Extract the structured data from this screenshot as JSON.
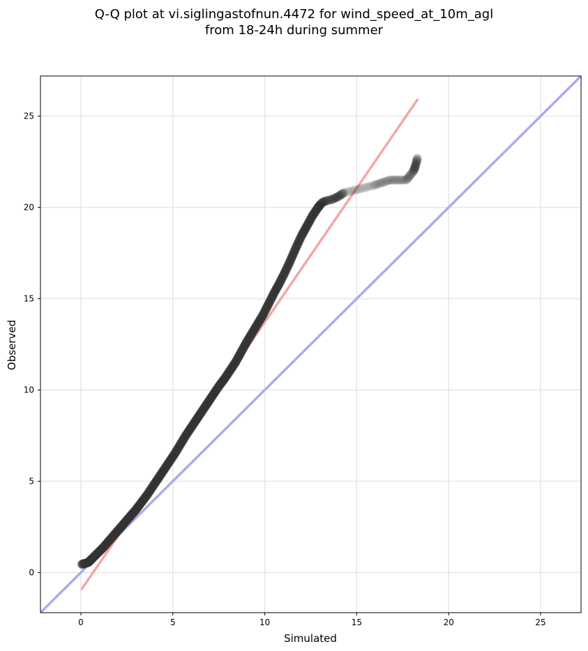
{
  "chart_data": {
    "type": "scatter",
    "title_lines": [
      "Q-Q plot at vi.siglingastofnun.4472 for wind_speed_at_10m_agl",
      "from 18-24h during summer"
    ],
    "xlabel": "Simulated",
    "ylabel": "Observed",
    "xlim": [
      -2.2,
      27.2
    ],
    "ylim": [
      -2.2,
      27.2
    ],
    "xticks": [
      0,
      5,
      10,
      15,
      20,
      25
    ],
    "yticks": [
      0,
      5,
      10,
      15,
      20,
      25
    ],
    "grid": true,
    "series": [
      {
        "kind": "reference-line",
        "color": "#aaaaee",
        "points": [
          [
            -2.2,
            -2.2
          ],
          [
            27.2,
            27.2
          ]
        ]
      },
      {
        "kind": "fit-line",
        "color": "#f4a6a6",
        "points": [
          [
            0.05,
            -0.9
          ],
          [
            18.3,
            25.9
          ]
        ]
      },
      {
        "kind": "quantiles",
        "color": "#333333",
        "x": [
          0.05,
          0.4,
          0.6,
          0.9,
          1.2,
          1.5,
          1.8,
          2.1,
          2.4,
          2.7,
          3.0,
          3.3,
          3.6,
          3.9,
          4.2,
          4.5,
          4.8,
          5.1,
          5.4,
          5.7,
          6.0,
          6.3,
          6.6,
          6.9,
          7.2,
          7.5,
          7.8,
          8.1,
          8.4,
          8.7,
          9.0,
          9.3,
          9.6,
          9.9,
          10.2,
          10.5,
          10.8,
          11.1,
          11.4,
          11.7,
          12.0,
          12.3,
          12.6,
          12.9,
          13.1,
          13.3,
          13.7,
          14.0,
          14.3,
          15.9,
          16.8,
          17.7,
          18.1,
          18.2,
          18.3
        ],
        "y": [
          0.45,
          0.55,
          0.75,
          1.05,
          1.35,
          1.7,
          2.05,
          2.4,
          2.75,
          3.1,
          3.45,
          3.85,
          4.25,
          4.7,
          5.15,
          5.6,
          6.05,
          6.5,
          7.0,
          7.5,
          7.95,
          8.4,
          8.85,
          9.3,
          9.75,
          10.2,
          10.6,
          11.05,
          11.5,
          12.05,
          12.6,
          13.1,
          13.6,
          14.1,
          14.7,
          15.3,
          15.85,
          16.45,
          17.1,
          17.8,
          18.45,
          19.0,
          19.55,
          20.0,
          20.25,
          20.35,
          20.45,
          20.6,
          20.8,
          21.2,
          21.5,
          21.5,
          22.0,
          22.3,
          22.7
        ]
      }
    ]
  }
}
